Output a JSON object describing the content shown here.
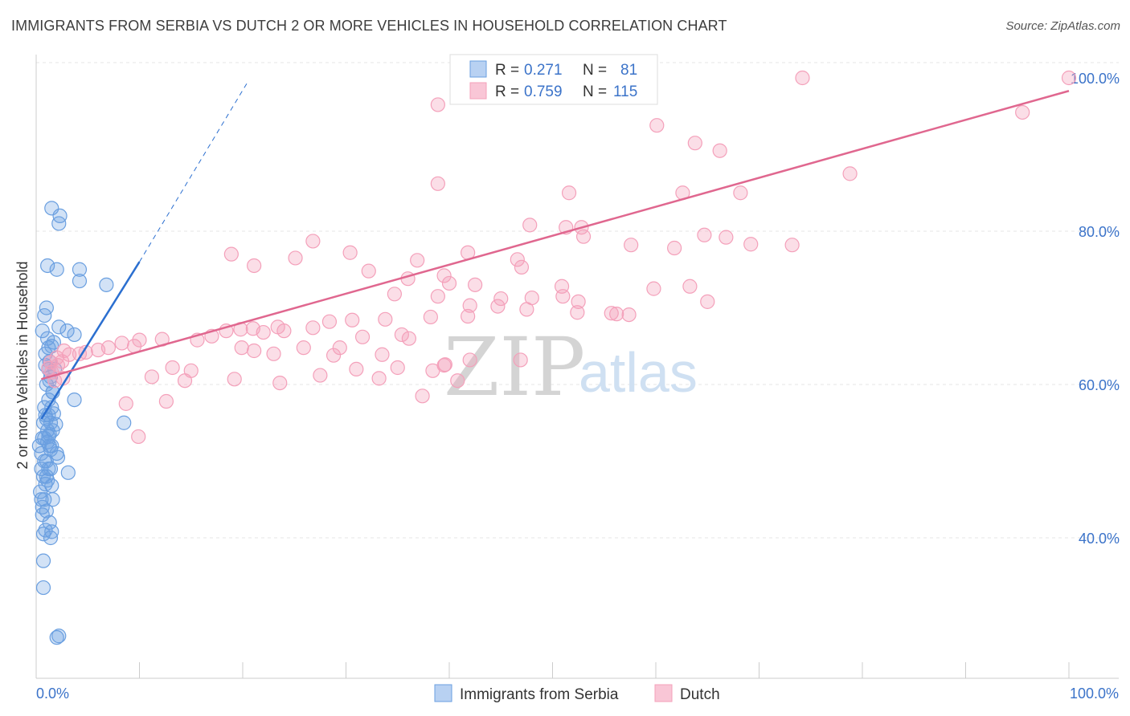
{
  "title": "IMMIGRANTS FROM SERBIA VS DUTCH 2 OR MORE VEHICLES IN HOUSEHOLD CORRELATION CHART",
  "source": "Source: ZipAtlas.com",
  "watermark": {
    "zip": "ZIP",
    "atlas": "atlas"
  },
  "colors": {
    "serbia": "#6a9fe0",
    "serbia_line": "#2b6fd0",
    "dutch": "#f4a0ba",
    "dutch_line": "#e0678f",
    "tick": "#3b73c9"
  },
  "chart_data": {
    "type": "scatter",
    "ylabel": "2 or more Vehicles in Household",
    "xlim": [
      0,
      100
    ],
    "ylim": [
      20,
      101
    ],
    "x_tick_labels": [
      {
        "value": 0,
        "label": "0.0%"
      },
      {
        "value": 100,
        "label": "100.0%"
      }
    ],
    "y_tick_labels": [
      {
        "value": 40,
        "label": "40.0%"
      },
      {
        "value": 60,
        "label": "60.0%"
      },
      {
        "value": 80,
        "label": "80.0%"
      },
      {
        "value": 100,
        "label": "100.0%"
      }
    ],
    "legend": [
      {
        "r_label": "R =",
        "r": "0.271",
        "n_label": "N =",
        "n": "81"
      },
      {
        "r_label": "R =",
        "r": "0.759",
        "n_label": "N =",
        "n": "115"
      }
    ],
    "series": [
      {
        "name": "Immigrants from Serbia",
        "color": "#6a9fe0",
        "trend": {
          "x0": 0.5,
          "y0": 55.5,
          "x1": 10,
          "y1": 76,
          "dash_x1": 20.5,
          "dash_y1": 99.5
        },
        "points": [
          [
            0.3,
            52
          ],
          [
            0.5,
            49
          ],
          [
            0.4,
            46
          ],
          [
            0.6,
            53
          ],
          [
            0.7,
            55
          ],
          [
            0.8,
            57
          ],
          [
            0.5,
            51
          ],
          [
            1.0,
            60
          ],
          [
            1.2,
            62
          ],
          [
            0.9,
            64
          ],
          [
            1.1,
            66
          ],
          [
            0.6,
            67
          ],
          [
            0.8,
            69
          ],
          [
            1.0,
            70
          ],
          [
            1.5,
            65
          ],
          [
            1.3,
            63
          ],
          [
            1.4,
            61
          ],
          [
            1.6,
            59
          ],
          [
            1.2,
            58
          ],
          [
            0.9,
            56
          ],
          [
            1.1,
            54
          ],
          [
            1.3,
            52
          ],
          [
            1.0,
            50
          ],
          [
            0.7,
            48
          ],
          [
            0.8,
            45
          ],
          [
            0.6,
            43
          ],
          [
            0.9,
            41
          ],
          [
            1.4,
            40
          ],
          [
            0.7,
            37
          ],
          [
            0.7,
            33.5
          ],
          [
            2.0,
            27
          ],
          [
            2.2,
            27.2
          ],
          [
            1.5,
            83
          ],
          [
            2.3,
            82
          ],
          [
            2.2,
            81
          ],
          [
            1.1,
            75.5
          ],
          [
            2.0,
            75
          ],
          [
            4.2,
            75
          ],
          [
            4.2,
            73.5
          ],
          [
            6.8,
            73
          ],
          [
            2.2,
            67.5
          ],
          [
            3.0,
            67
          ],
          [
            3.7,
            66.5
          ],
          [
            1.7,
            65.5
          ],
          [
            1.2,
            64.8
          ],
          [
            0.9,
            62.5
          ],
          [
            1.8,
            62
          ],
          [
            1.3,
            60.5
          ],
          [
            1.6,
            59
          ],
          [
            1.5,
            57
          ],
          [
            3.7,
            58
          ],
          [
            1.2,
            56
          ],
          [
            1.0,
            55.5
          ],
          [
            1.4,
            55
          ],
          [
            1.6,
            54
          ],
          [
            1.3,
            53.5
          ],
          [
            0.8,
            53
          ],
          [
            1.1,
            52.5
          ],
          [
            1.5,
            52
          ],
          [
            2.0,
            51
          ],
          [
            2.1,
            50.5
          ],
          [
            1.4,
            49
          ],
          [
            1.2,
            49
          ],
          [
            3.1,
            48.5
          ],
          [
            1.0,
            48
          ],
          [
            0.9,
            47
          ],
          [
            1.5,
            46.8
          ],
          [
            1.6,
            45
          ],
          [
            0.5,
            45
          ],
          [
            0.6,
            44
          ],
          [
            1.0,
            43.5
          ],
          [
            1.3,
            42
          ],
          [
            0.7,
            40.5
          ],
          [
            1.5,
            40.8
          ],
          [
            8.5,
            55
          ],
          [
            1.2,
            53.2
          ],
          [
            1.4,
            51.5
          ],
          [
            0.8,
            50
          ],
          [
            1.1,
            47.5
          ],
          [
            1.7,
            56.2
          ],
          [
            1.9,
            54.8
          ]
        ]
      },
      {
        "name": "Dutch",
        "color": "#f4a0ba",
        "trend": {
          "x0": 0.5,
          "y0": 60.7,
          "x1": 100,
          "y1": 98.3
        },
        "points": [
          [
            74.2,
            100
          ],
          [
            100,
            100
          ],
          [
            38.9,
            96.5
          ],
          [
            95.5,
            95.5
          ],
          [
            60.1,
            93.8
          ],
          [
            63.8,
            91.5
          ],
          [
            66.2,
            90.5
          ],
          [
            78.8,
            87.5
          ],
          [
            38.9,
            86.2
          ],
          [
            62.6,
            85
          ],
          [
            51.6,
            85
          ],
          [
            68.2,
            85
          ],
          [
            47.8,
            80.8
          ],
          [
            51.3,
            80.5
          ],
          [
            52.8,
            80.5
          ],
          [
            64.7,
            79.5
          ],
          [
            53.0,
            79.3
          ],
          [
            66.8,
            79.2
          ],
          [
            26.8,
            78.7
          ],
          [
            69.2,
            78.3
          ],
          [
            73.2,
            78.2
          ],
          [
            57.6,
            78.2
          ],
          [
            61.8,
            77.8
          ],
          [
            41.8,
            77.2
          ],
          [
            18.9,
            77.0
          ],
          [
            30.4,
            77.2
          ],
          [
            36.9,
            76.2
          ],
          [
            25.1,
            76.5
          ],
          [
            46.6,
            76.3
          ],
          [
            21.1,
            75.5
          ],
          [
            47.0,
            75.3
          ],
          [
            32.2,
            74.8
          ],
          [
            39.5,
            74.2
          ],
          [
            36.0,
            73.8
          ],
          [
            40.0,
            73.2
          ],
          [
            42.5,
            73.0
          ],
          [
            50.9,
            72.8
          ],
          [
            63.3,
            72.8
          ],
          [
            59.8,
            72.5
          ],
          [
            34.7,
            71.8
          ],
          [
            38.9,
            71.5
          ],
          [
            45.0,
            71.2
          ],
          [
            48.0,
            71.3
          ],
          [
            51.0,
            71.5
          ],
          [
            52.5,
            70.8
          ],
          [
            65.0,
            70.8
          ],
          [
            42.0,
            70.3
          ],
          [
            44.7,
            70.2
          ],
          [
            47.5,
            69.8
          ],
          [
            52.4,
            69.4
          ],
          [
            55.7,
            69.3
          ],
          [
            56.2,
            69.2
          ],
          [
            57.4,
            69.1
          ],
          [
            41.8,
            68.9
          ],
          [
            38.2,
            68.8
          ],
          [
            33.8,
            68.5
          ],
          [
            28.4,
            68.2
          ],
          [
            30.6,
            68.4
          ],
          [
            23.4,
            67.5
          ],
          [
            26.8,
            67.4
          ],
          [
            21.0,
            67.3
          ],
          [
            18.4,
            67.0
          ],
          [
            19.8,
            67.2
          ],
          [
            22.0,
            66.8
          ],
          [
            24.0,
            67.0
          ],
          [
            35.4,
            66.5
          ],
          [
            36.1,
            66.0
          ],
          [
            31.6,
            66.2
          ],
          [
            17.0,
            66.3
          ],
          [
            15.6,
            65.8
          ],
          [
            12.2,
            65.9
          ],
          [
            10.0,
            65.8
          ],
          [
            8.3,
            65.4
          ],
          [
            9.5,
            65.0
          ],
          [
            7.0,
            64.8
          ],
          [
            6.0,
            64.5
          ],
          [
            4.8,
            64.2
          ],
          [
            4.2,
            64.0
          ],
          [
            3.2,
            63.9
          ],
          [
            2.7,
            64.4
          ],
          [
            2.0,
            63.5
          ],
          [
            2.5,
            63.0
          ],
          [
            1.4,
            62.9
          ],
          [
            2.1,
            62.5
          ],
          [
            1.2,
            62.1
          ],
          [
            1.5,
            61.6
          ],
          [
            2.6,
            60.8
          ],
          [
            1.8,
            60.5
          ],
          [
            19.9,
            64.8
          ],
          [
            25.9,
            64.8
          ],
          [
            29.4,
            64.8
          ],
          [
            21.1,
            64.4
          ],
          [
            23.0,
            64.0
          ],
          [
            28.8,
            63.8
          ],
          [
            33.5,
            63.9
          ],
          [
            42.0,
            63.2
          ],
          [
            46.9,
            63.2
          ],
          [
            39.5,
            62.5
          ],
          [
            31.0,
            62.0
          ],
          [
            35.0,
            62.2
          ],
          [
            38.4,
            61.8
          ],
          [
            39.6,
            62.6
          ],
          [
            13.2,
            62.2
          ],
          [
            15.0,
            61.8
          ],
          [
            11.2,
            61.0
          ],
          [
            14.4,
            60.5
          ],
          [
            19.2,
            60.7
          ],
          [
            23.6,
            60.2
          ],
          [
            27.5,
            61.2
          ],
          [
            33.2,
            60.8
          ],
          [
            40.8,
            60.5
          ],
          [
            37.4,
            58.5
          ],
          [
            12.6,
            57.8
          ],
          [
            9.9,
            53.2
          ],
          [
            8.7,
            57.5
          ]
        ]
      }
    ]
  }
}
